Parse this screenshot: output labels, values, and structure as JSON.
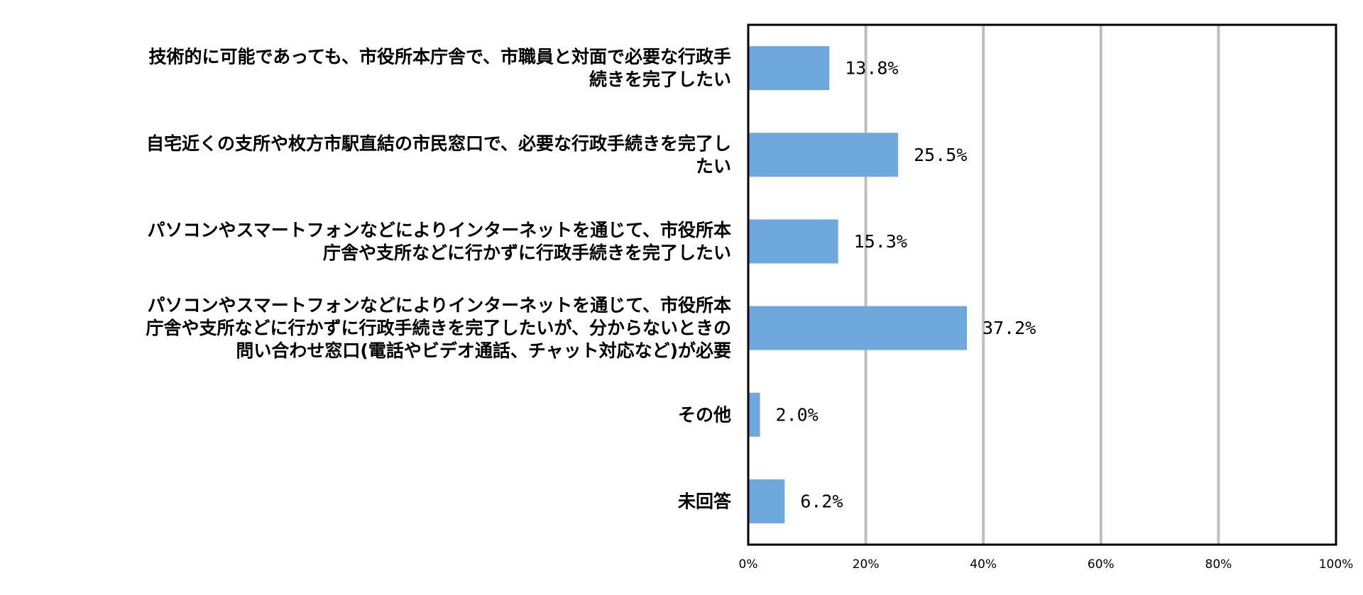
{
  "chart_data": {
    "type": "bar",
    "orientation": "horizontal",
    "categories": [
      [
        "技術的に可能であっても、市役所本庁舎で、市職員と対面で必要な行政手",
        "続きを完了したい"
      ],
      [
        "自宅近くの支所や枚方市駅直結の市民窓口で、必要な行政手続きを完了し",
        "たい"
      ],
      [
        "パソコンやスマートフォンなどによりインターネットを通じて、市役所本",
        "庁舎や支所などに行かずに行政手続きを完了したい"
      ],
      [
        "パソコンやスマートフォンなどによりインターネットを通じて、市役所本",
        "庁舎や支所などに行かずに行政手続きを完了したいが、分からないときの",
        "問い合わせ窓口(電話やビデオ通話、チャット対応など)が必要"
      ],
      [
        "その他"
      ],
      [
        "未回答"
      ]
    ],
    "values": [
      13.8,
      25.5,
      15.3,
      37.2,
      2.0,
      6.2
    ],
    "value_labels": [
      "13.8%",
      "25.5%",
      "15.3%",
      "37.2%",
      "2.0%",
      "6.2%"
    ],
    "xlim": [
      0,
      100
    ],
    "x_ticks": [
      0,
      20,
      40,
      60,
      80,
      100
    ],
    "x_tick_labels": [
      "0%",
      "20%",
      "40%",
      "60%",
      "80%",
      "100%"
    ],
    "grid": true,
    "legend": "none",
    "title": "",
    "xlabel": "",
    "ylabel": "",
    "colors": {
      "bar": "#6fa8dc",
      "grid": "#bfbfbf",
      "frame": "#000000",
      "text": "#000000"
    }
  }
}
